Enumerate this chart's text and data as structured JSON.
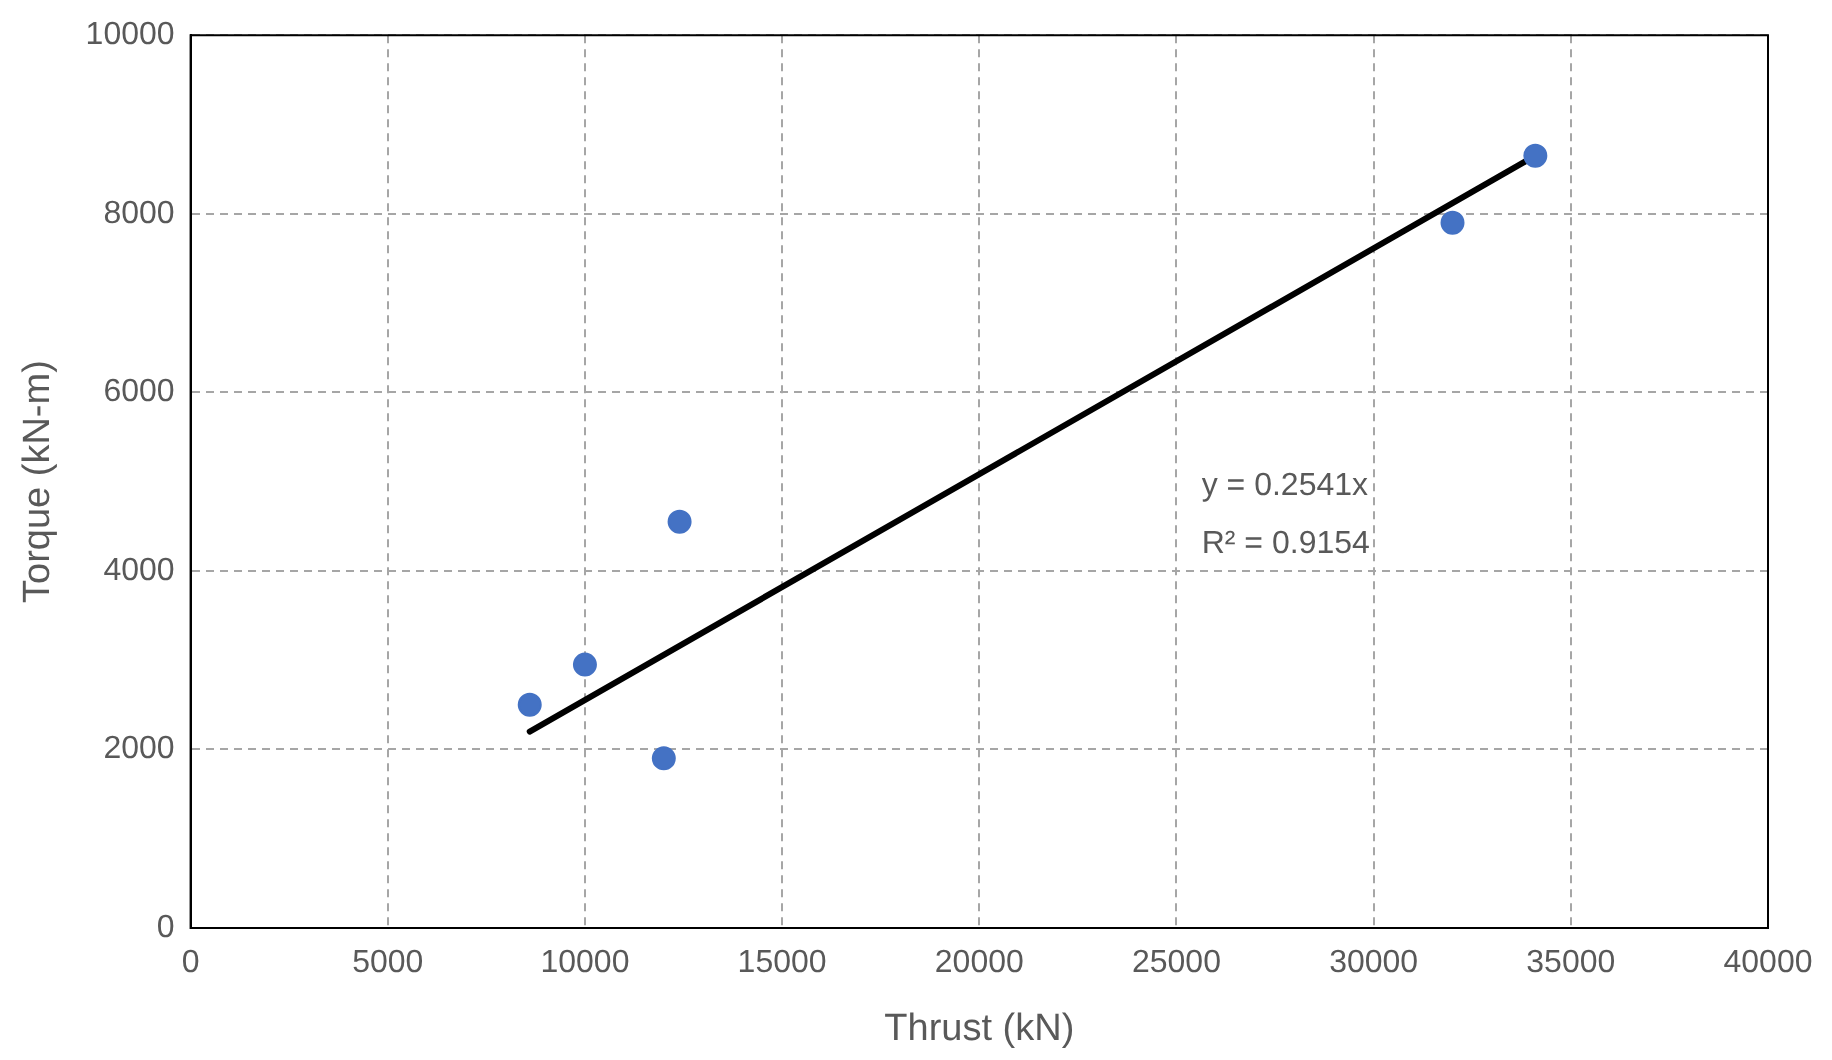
{
  "chart_data": {
    "type": "scatter",
    "xlabel": "Thrust (kN)",
    "ylabel": "Torque (kN-m)",
    "x": [
      8600,
      10000,
      12000,
      12400,
      32000,
      34100
    ],
    "series": [
      {
        "type": "scatter",
        "color": "#4472c4",
        "marker": "circle",
        "values": [
          2500,
          2950,
          1900,
          4550,
          7900,
          8650
        ]
      },
      {
        "type": "line",
        "color": "#000000",
        "marker": "none",
        "line_style": "solid",
        "x": [
          8600,
          34100
        ],
        "values": [
          2200,
          8650
        ]
      }
    ],
    "xlim": [
      0,
      40000
    ],
    "xticks": [
      0,
      5000,
      10000,
      15000,
      20000,
      25000,
      30000,
      35000,
      40000
    ],
    "ylim": [
      0,
      10000
    ],
    "yticks": [
      0,
      2000,
      4000,
      6000,
      8000,
      10000
    ],
    "grid": true,
    "legend": false,
    "annotations": [
      "y = 0.2541x",
      "R² = 0.9154"
    ]
  }
}
